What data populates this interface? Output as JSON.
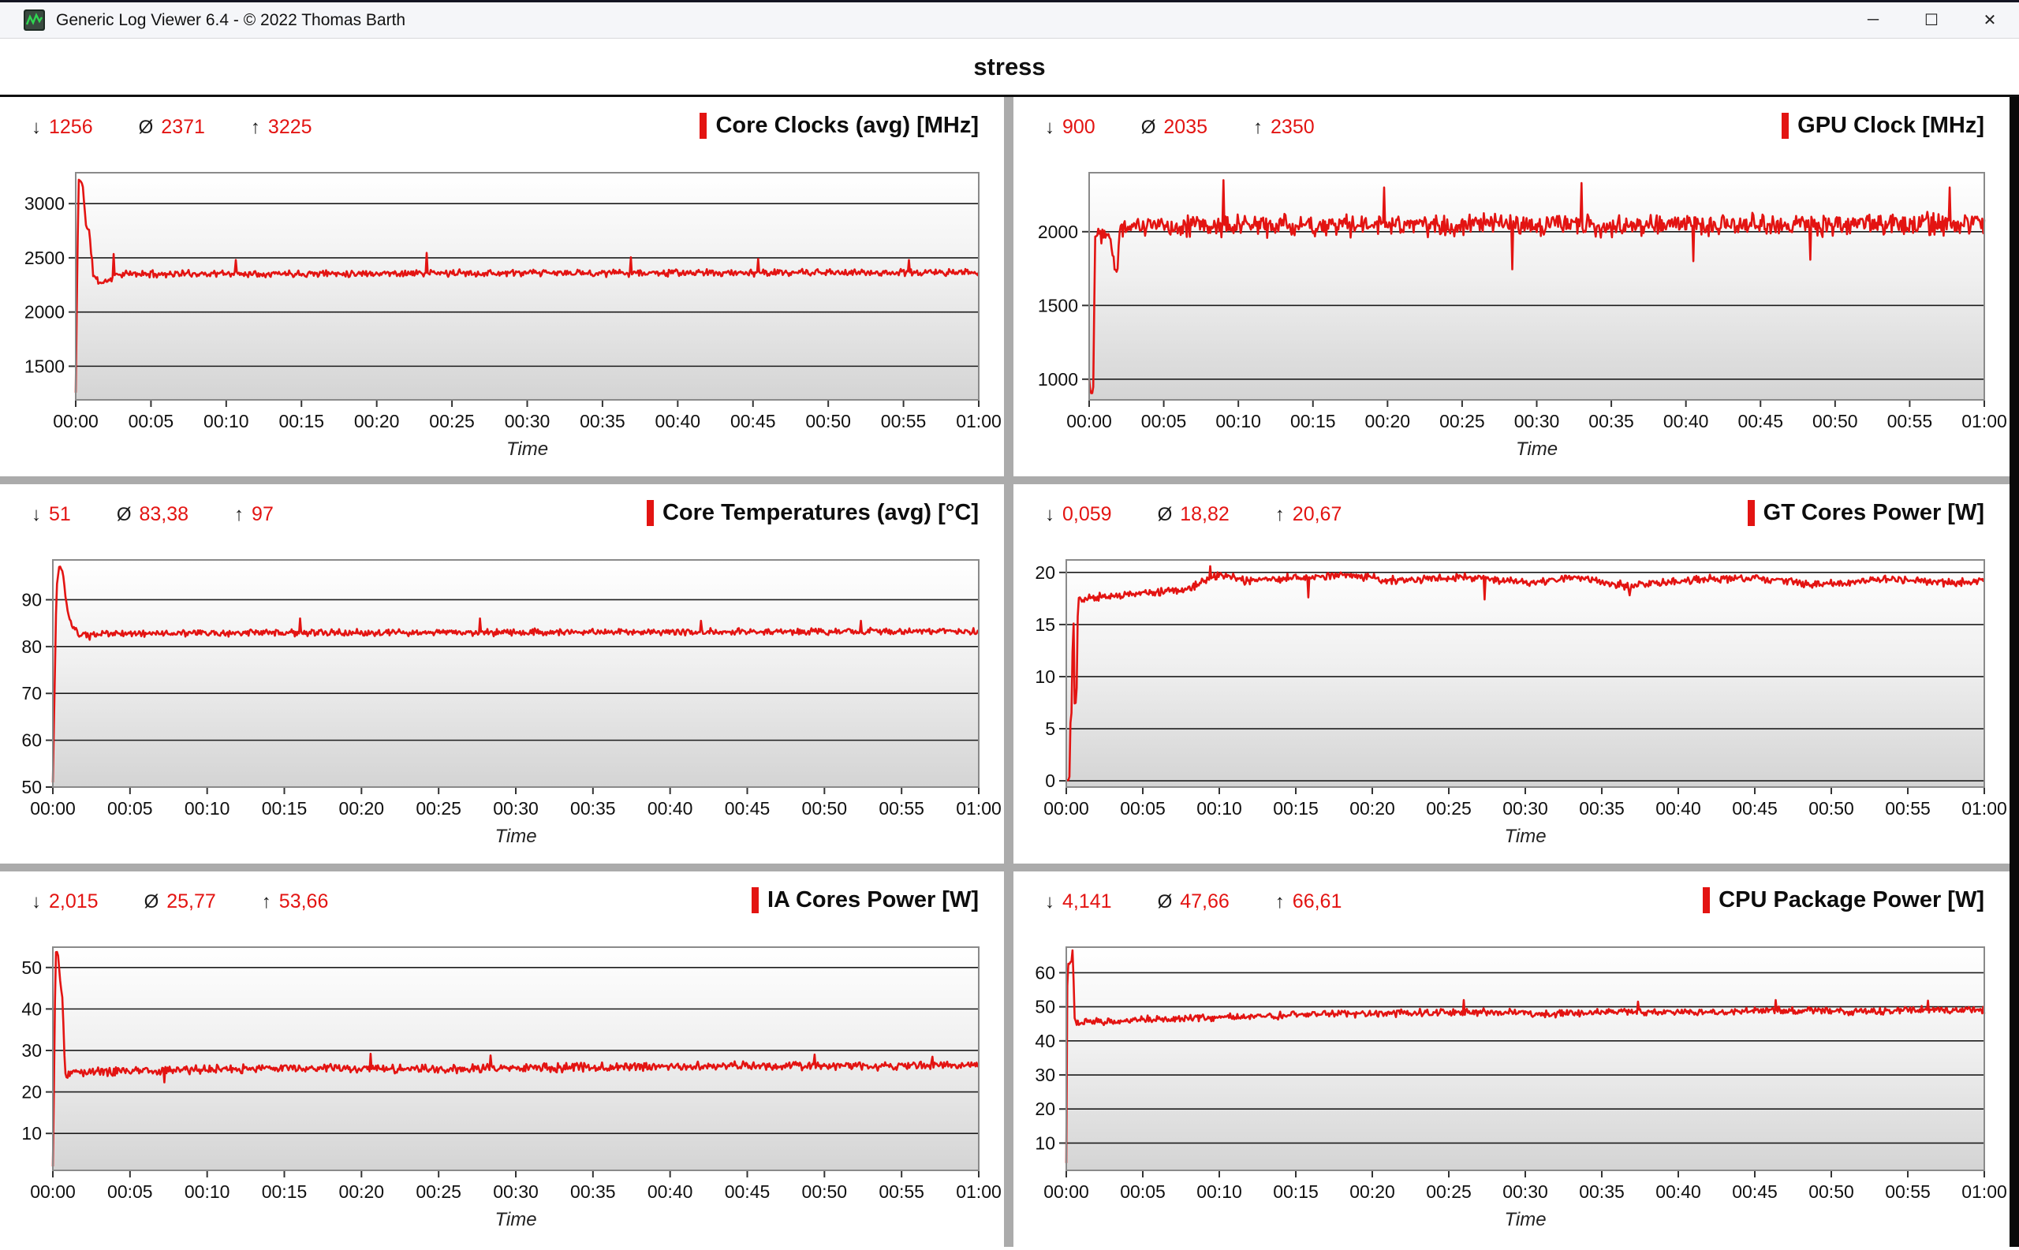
{
  "window": {
    "title": "Generic Log Viewer 6.4 - © 2022 Thomas Barth",
    "controls": {
      "minimize": "─",
      "maximize": "☐",
      "close": "✕"
    }
  },
  "header": {
    "title": "stress"
  },
  "colors": {
    "series_red": "#e31412",
    "stat_value": "#e31412",
    "grid_line": "#1c1c1c",
    "plot_border": "#8a8a8a",
    "separator": "#ababab",
    "plot_bg_top": "#ffffff",
    "plot_bg_mid": "#f0f0f0",
    "plot_bg_bottom": "#d4d4d4"
  },
  "stats_symbols": {
    "min": "↓",
    "avg": "Ø",
    "max": "↑"
  },
  "time_axis": {
    "label": "Time",
    "ticks": [
      "00:00",
      "00:05",
      "00:10",
      "00:15",
      "00:20",
      "00:25",
      "00:30",
      "00:35",
      "00:40",
      "00:45",
      "00:50",
      "00:55",
      "01:00"
    ]
  },
  "chart_data": [
    {
      "type": "line",
      "title": "Core Clocks (avg) [MHz]",
      "stats": {
        "min": "1256",
        "avg": "2371",
        "max": "3225"
      },
      "yticks": [
        1500,
        2000,
        2500,
        3000
      ],
      "ylim": [
        1190,
        3285
      ],
      "x_range_seconds": 3600,
      "anchors": [
        [
          0,
          1256
        ],
        [
          6,
          2400
        ],
        [
          12,
          3225
        ],
        [
          28,
          3175
        ],
        [
          42,
          2780
        ],
        [
          55,
          2730
        ],
        [
          70,
          2340
        ],
        [
          95,
          2270
        ],
        [
          130,
          2290
        ],
        [
          170,
          2350
        ],
        [
          600,
          2355
        ],
        [
          3600,
          2365
        ]
      ],
      "spikes": [
        [
          150,
          2535
        ],
        [
          640,
          2480
        ],
        [
          1400,
          2545
        ],
        [
          2215,
          2505
        ],
        [
          2720,
          2490
        ],
        [
          3320,
          2480
        ]
      ],
      "noise": 38,
      "seed": 11
    },
    {
      "type": "line",
      "title": "GPU Clock [MHz]",
      "stats": {
        "min": "900",
        "avg": "2035",
        "max": "2350"
      },
      "yticks": [
        1000,
        1500,
        2000
      ],
      "ylim": [
        860,
        2400
      ],
      "x_range_seconds": 3600,
      "anchors": [
        [
          0,
          1000
        ],
        [
          6,
          900
        ],
        [
          16,
          905
        ],
        [
          24,
          1980
        ],
        [
          80,
          2030
        ],
        [
          110,
          1690
        ],
        [
          125,
          2040
        ],
        [
          3600,
          2050
        ]
      ],
      "spikes": [
        [
          540,
          2350
        ],
        [
          1185,
          2300
        ],
        [
          1700,
          1745
        ],
        [
          1980,
          2330
        ],
        [
          2430,
          1800
        ],
        [
          2900,
          1810
        ],
        [
          3460,
          2300
        ]
      ],
      "noise": 88,
      "seed": 22
    },
    {
      "type": "line",
      "title": "Core Temperatures (avg) [°C]",
      "stats": {
        "min": "51",
        "avg": "83,38",
        "max": "97"
      },
      "yticks": [
        50,
        60,
        70,
        80,
        90
      ],
      "ylim": [
        50,
        98.5
      ],
      "x_range_seconds": 3600,
      "anchors": [
        [
          0,
          51
        ],
        [
          14,
          92
        ],
        [
          24,
          97
        ],
        [
          38,
          96.5
        ],
        [
          50,
          90
        ],
        [
          62,
          86
        ],
        [
          80,
          84
        ],
        [
          100,
          82.6
        ],
        [
          140,
          82.2
        ],
        [
          200,
          82.8
        ],
        [
          3600,
          83.3
        ]
      ],
      "spikes": [
        [
          960,
          86
        ],
        [
          1660,
          86
        ],
        [
          2520,
          85.5
        ],
        [
          3140,
          85.5
        ]
      ],
      "noise": 0.85,
      "seed": 33
    },
    {
      "type": "line",
      "title": "GT Cores Power [W]",
      "stats": {
        "min": "0,059",
        "avg": "18,82",
        "max": "20,67"
      },
      "yticks": [
        0,
        5,
        10,
        15,
        20
      ],
      "ylim": [
        -0.6,
        21.2
      ],
      "x_range_seconds": 3600,
      "anchors": [
        [
          0,
          0.06
        ],
        [
          12,
          0.06
        ],
        [
          17,
          6.3
        ],
        [
          23,
          6.9
        ],
        [
          27,
          20.5
        ],
        [
          31,
          7.4
        ],
        [
          40,
          7.5
        ],
        [
          46,
          17.4
        ],
        [
          120,
          17.6
        ],
        [
          300,
          18.0
        ],
        [
          480,
          18.4
        ],
        [
          600,
          19.8
        ],
        [
          700,
          19.2
        ],
        [
          900,
          19.5
        ],
        [
          1100,
          19.8
        ],
        [
          1300,
          19.2
        ],
        [
          1560,
          19.6
        ],
        [
          1800,
          19.0
        ],
        [
          2000,
          19.5
        ],
        [
          2200,
          18.7
        ],
        [
          2450,
          19.3
        ],
        [
          2700,
          19.5
        ],
        [
          2950,
          18.8
        ],
        [
          3200,
          19.4
        ],
        [
          3450,
          19.0
        ],
        [
          3600,
          19.2
        ]
      ],
      "spikes": [
        [
          565,
          20.6
        ],
        [
          950,
          17.6
        ],
        [
          1640,
          17.4
        ],
        [
          2210,
          17.8
        ]
      ],
      "noise": 0.45,
      "seed": 44
    },
    {
      "type": "line",
      "title": "IA Cores Power [W]",
      "stats": {
        "min": "2,015",
        "avg": "25,77",
        "max": "53,66"
      },
      "yticks": [
        10,
        20,
        30,
        40,
        50
      ],
      "ylim": [
        1.1,
        54.9
      ],
      "x_range_seconds": 3600,
      "anchors": [
        [
          0,
          2.05
        ],
        [
          6,
          28
        ],
        [
          10,
          53.6
        ],
        [
          16,
          54
        ],
        [
          22,
          52.5
        ],
        [
          28,
          47
        ],
        [
          34,
          44.5
        ],
        [
          38,
          43
        ],
        [
          43,
          32
        ],
        [
          48,
          24.3
        ],
        [
          90,
          24.8
        ],
        [
          400,
          25.2
        ],
        [
          900,
          25.8
        ],
        [
          1500,
          25.5
        ],
        [
          2100,
          26
        ],
        [
          2700,
          26.3
        ],
        [
          3300,
          26.2
        ],
        [
          3600,
          26.5
        ]
      ],
      "spikes": [
        [
          435,
          22.3
        ],
        [
          1235,
          29.2
        ],
        [
          1700,
          28.8
        ],
        [
          2960,
          29
        ],
        [
          3420,
          28.5
        ]
      ],
      "noise": 1.25,
      "seed": 55
    },
    {
      "type": "line",
      "title": "CPU Package Power [W]",
      "stats": {
        "min": "4,141",
        "avg": "47,66",
        "max": "66,61"
      },
      "yticks": [
        10,
        20,
        30,
        40,
        50,
        60
      ],
      "ylim": [
        2,
        67.5
      ],
      "x_range_seconds": 3600,
      "anchors": [
        [
          0,
          4.15
        ],
        [
          4,
          56
        ],
        [
          8,
          62.5
        ],
        [
          14,
          63
        ],
        [
          20,
          63.5
        ],
        [
          24,
          66.6
        ],
        [
          27,
          64.5
        ],
        [
          31,
          47
        ],
        [
          36,
          45.3
        ],
        [
          60,
          45.6
        ],
        [
          150,
          45.8
        ],
        [
          400,
          46.5
        ],
        [
          700,
          47.2
        ],
        [
          1000,
          47.8
        ],
        [
          1300,
          48.2
        ],
        [
          1600,
          48.5
        ],
        [
          1900,
          47.9
        ],
        [
          2200,
          48.6
        ],
        [
          2500,
          48.3
        ],
        [
          2800,
          49
        ],
        [
          3100,
          48.6
        ],
        [
          3400,
          49.2
        ],
        [
          3600,
          49
        ]
      ],
      "spikes": [
        [
          1560,
          52
        ],
        [
          2240,
          51.5
        ],
        [
          2780,
          52
        ],
        [
          3380,
          51.8
        ]
      ],
      "noise": 1.25,
      "seed": 66
    }
  ]
}
